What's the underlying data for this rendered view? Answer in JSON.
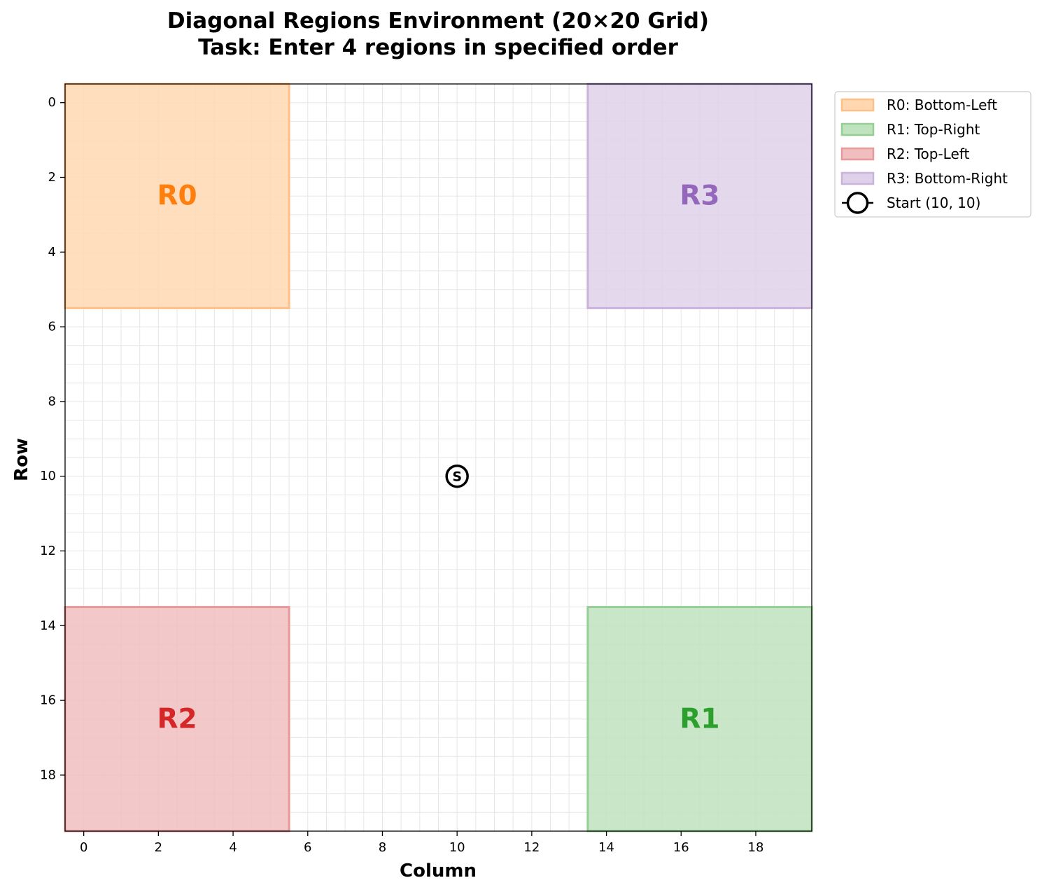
{
  "chart_data": {
    "type": "heatmap",
    "title_line1": "Diagonal Regions Environment (20×20 Grid)",
    "title_line2": "Task: Enter 4 regions in specified order",
    "xlabel": "Column",
    "ylabel": "Row",
    "grid_size": 20,
    "xlim": [
      -0.5,
      19.5
    ],
    "ylim": [
      19.5,
      -0.5
    ],
    "xticks": [
      0,
      2,
      4,
      6,
      8,
      10,
      12,
      14,
      16,
      18
    ],
    "yticks": [
      0,
      2,
      4,
      6,
      8,
      10,
      12,
      14,
      16,
      18
    ],
    "grid": true,
    "legend_position": "outside-top-right",
    "regions": [
      {
        "id": "R0",
        "legend": "R0: Bottom-Left",
        "rows": [
          0,
          5
        ],
        "cols": [
          0,
          5
        ],
        "fill": "#ffd8b2",
        "edge": "#ffbf86",
        "text_color": "#ff7f0e"
      },
      {
        "id": "R1",
        "legend": "R1: Top-Right",
        "rows": [
          14,
          19
        ],
        "cols": [
          14,
          19
        ],
        "fill": "#bfe2bf",
        "edge": "#95cf95",
        "text_color": "#2ca02c"
      },
      {
        "id": "R2",
        "legend": "R2: Top-Left",
        "rows": [
          14,
          19
        ],
        "cols": [
          0,
          5
        ],
        "fill": "#f0bebe",
        "edge": "#e8999a",
        "text_color": "#d62728"
      },
      {
        "id": "R3",
        "legend": "R3: Bottom-Right",
        "rows": [
          0,
          5
        ],
        "cols": [
          14,
          19
        ],
        "fill": "#dfd1ea",
        "edge": "#c9b3dd",
        "text_color": "#9467bd"
      }
    ],
    "start": {
      "row": 10,
      "col": 10,
      "marker": "S",
      "legend": "Start (10, 10)"
    }
  }
}
